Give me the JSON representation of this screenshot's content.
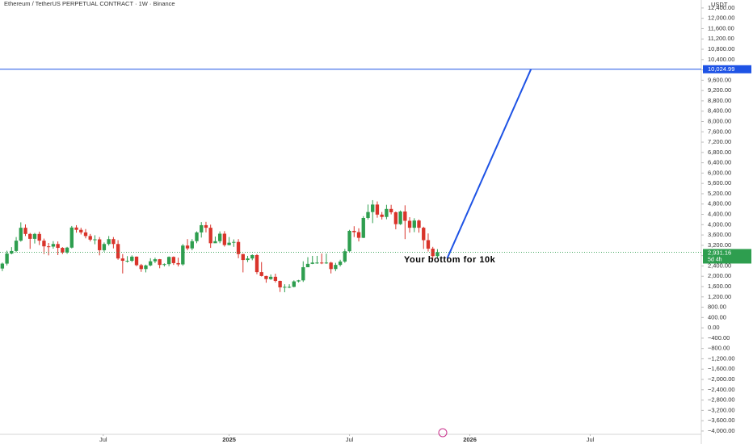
{
  "chart_data": {
    "type": "candlestick",
    "title": "Ethereum / TetherUS PERPETUAL CONTRACT · 1W · Binance",
    "currency": "USDT",
    "up_color": "#2e9e4f",
    "down_color": "#d9342b",
    "open": [
      2300,
      2490,
      2880,
      2980,
      3380,
      3880,
      3640,
      3450,
      3640,
      3380,
      3160,
      3150,
      3250,
      3100,
      2920,
      3110,
      3890,
      3800,
      3700,
      3560,
      3420,
      3430,
      3010,
      3250,
      3440,
      3250,
      2690,
      2600,
      2600,
      2760,
      2430,
      2280,
      2420,
      2580,
      2660,
      2440,
      2470,
      2750,
      2510,
      2460,
      3190,
      3080,
      3360,
      3700,
      3980,
      3880,
      3280,
      3360,
      3650,
      3210,
      3300,
      3330,
      2860,
      2630,
      2690,
      2820,
      2160,
      2010,
      1890,
      1980,
      1820,
      1570,
      1590,
      1590,
      1800,
      1840,
      2350,
      2480,
      2530,
      2530,
      2500,
      2530,
      2280,
      2440,
      2570,
      2970,
      3760,
      3710,
      3490,
      4260,
      4490,
      4780,
      4390,
      4300,
      4610,
      4480,
      4020,
      4510,
      4150,
      3880,
      4160,
      3880,
      3400,
      3070,
      2780
    ],
    "high": [
      2530,
      2990,
      3130,
      3520,
      4090,
      4010,
      3680,
      3680,
      3730,
      3460,
      3290,
      3360,
      3350,
      3130,
      3140,
      3950,
      3980,
      3880,
      3830,
      3640,
      3590,
      3520,
      3310,
      3560,
      3520,
      3400,
      2860,
      2780,
      2810,
      2770,
      2480,
      2450,
      2700,
      2720,
      2670,
      2500,
      2770,
      2770,
      2720,
      3250,
      3440,
      3440,
      3740,
      4100,
      4110,
      4000,
      3540,
      3740,
      3750,
      3520,
      3430,
      3440,
      2870,
      2790,
      2850,
      2860,
      2550,
      2020,
      2070,
      2100,
      1830,
      1690,
      1690,
      1840,
      1860,
      2580,
      2740,
      2790,
      2790,
      2880,
      2880,
      2560,
      2520,
      2640,
      3060,
      3800,
      3940,
      3860,
      4330,
      4780,
      4950,
      4900,
      4490,
      4770,
      4770,
      4510,
      4550,
      4750,
      4290,
      4250,
      4200,
      3920,
      3660,
      3140,
      3050
    ],
    "low": [
      2200,
      2420,
      2850,
      2930,
      3340,
      3560,
      3060,
      3270,
      3210,
      2860,
      2810,
      3070,
      2820,
      2860,
      2870,
      3080,
      3690,
      3620,
      3470,
      3350,
      3240,
      2810,
      2950,
      3190,
      3080,
      2640,
      2110,
      2530,
      2550,
      2390,
      2170,
      2150,
      2390,
      2510,
      2310,
      2380,
      2390,
      2440,
      2380,
      2410,
      3010,
      3010,
      3280,
      3500,
      3700,
      3100,
      3290,
      3280,
      3150,
      3200,
      3140,
      2700,
      2150,
      2550,
      2620,
      2080,
      1990,
      1750,
      1860,
      1760,
      1390,
      1380,
      1540,
      1570,
      1760,
      1780,
      2350,
      2470,
      2480,
      2470,
      2480,
      2110,
      2200,
      2380,
      2520,
      2950,
      3520,
      3350,
      3480,
      4200,
      4060,
      4270,
      4200,
      4210,
      4400,
      3820,
      3990,
      3440,
      3690,
      3710,
      3690,
      3060,
      2960,
      2630,
      2720
    ],
    "close": [
      2490,
      2880,
      2980,
      3380,
      3880,
      3640,
      3450,
      3640,
      3380,
      3160,
      3150,
      3250,
      3100,
      2920,
      3110,
      3890,
      3800,
      3700,
      3560,
      3420,
      3430,
      3010,
      3250,
      3440,
      3250,
      2690,
      2600,
      2600,
      2760,
      2430,
      2280,
      2420,
      2580,
      2660,
      2440,
      2470,
      2750,
      2510,
      2460,
      3190,
      3080,
      3360,
      3700,
      3980,
      3880,
      3280,
      3360,
      3650,
      3210,
      3300,
      3330,
      2860,
      2630,
      2690,
      2820,
      2160,
      2010,
      1890,
      1980,
      1820,
      1570,
      1590,
      1590,
      1800,
      1840,
      2350,
      2480,
      2530,
      2530,
      2500,
      2530,
      2280,
      2440,
      2570,
      2970,
      3760,
      3710,
      3490,
      4260,
      4490,
      4780,
      4390,
      4300,
      4610,
      4480,
      4020,
      4510,
      4150,
      3880,
      4160,
      3880,
      3400,
      3070,
      2780,
      2931.16
    ],
    "last_price": {
      "value": 2931.16,
      "label": "2,931.16"
    },
    "countdown": "5d 4h",
    "level": {
      "value": 10024.99,
      "label": "10,024.99",
      "color": "#1e53e5"
    },
    "trendline": {
      "x": [
        96.1,
        114.2
      ],
      "y": [
        2690,
        10024.99
      ],
      "color": "#1e53e5"
    },
    "annotation": "Your bottom for 10k",
    "xlim": [
      -0.5,
      151
    ],
    "ylim": [
      -4190,
      12710
    ],
    "xticks": [
      {
        "value": 21.8,
        "label": "Jul"
      },
      {
        "value": 49,
        "label": "2025"
      },
      {
        "value": 75,
        "label": "Jul"
      },
      {
        "value": 101,
        "label": "2026"
      },
      {
        "value": 127,
        "label": "Jul"
      }
    ],
    "yticks": [
      {
        "value": 12400,
        "label": "12,400.00"
      },
      {
        "value": 12000,
        "label": "12,000.00"
      },
      {
        "value": 11600,
        "label": "11,600.00"
      },
      {
        "value": 11200,
        "label": "11,200.00"
      },
      {
        "value": 10800,
        "label": "10,800.00"
      },
      {
        "value": 10400,
        "label": "10,400.00"
      },
      {
        "value": 10000,
        "label": "10,000.00"
      },
      {
        "value": 9600,
        "label": "9,600.00"
      },
      {
        "value": 9200,
        "label": "9,200.00"
      },
      {
        "value": 8800,
        "label": "8,800.00"
      },
      {
        "value": 8400,
        "label": "8,400.00"
      },
      {
        "value": 8000,
        "label": "8,000.00"
      },
      {
        "value": 7600,
        "label": "7,600.00"
      },
      {
        "value": 7200,
        "label": "7,200.00"
      },
      {
        "value": 6800,
        "label": "6,800.00"
      },
      {
        "value": 6400,
        "label": "6,400.00"
      },
      {
        "value": 6000,
        "label": "6,000.00"
      },
      {
        "value": 5600,
        "label": "5,600.00"
      },
      {
        "value": 5200,
        "label": "5,200.00"
      },
      {
        "value": 4800,
        "label": "4,800.00"
      },
      {
        "value": 4400,
        "label": "4,400.00"
      },
      {
        "value": 4000,
        "label": "4,000.00"
      },
      {
        "value": 3600,
        "label": "3,600.00"
      },
      {
        "value": 3200,
        "label": "3,200.00"
      },
      {
        "value": 2800,
        "label": "2,800.00"
      },
      {
        "value": 2400,
        "label": "2,400.00"
      },
      {
        "value": 2000,
        "label": "2,000.00"
      },
      {
        "value": 1600,
        "label": "1,600.00"
      },
      {
        "value": 1200,
        "label": "1,200.00"
      },
      {
        "value": 800,
        "label": "800.00"
      },
      {
        "value": 400,
        "label": "400.00"
      },
      {
        "value": 0,
        "label": "0.00"
      },
      {
        "value": -400,
        "label": "−400.00"
      },
      {
        "value": -800,
        "label": "−800.00"
      },
      {
        "value": -1200,
        "label": "−1,200.00"
      },
      {
        "value": -1600,
        "label": "−1,600.00"
      },
      {
        "value": -2000,
        "label": "−2,000.00"
      },
      {
        "value": -2400,
        "label": "−2,400.00"
      },
      {
        "value": -2800,
        "label": "−2,800.00"
      },
      {
        "value": -3200,
        "label": "−3,200.00"
      },
      {
        "value": -3600,
        "label": "−3,600.00"
      },
      {
        "value": -4000,
        "label": "−4,000.00"
      }
    ]
  }
}
